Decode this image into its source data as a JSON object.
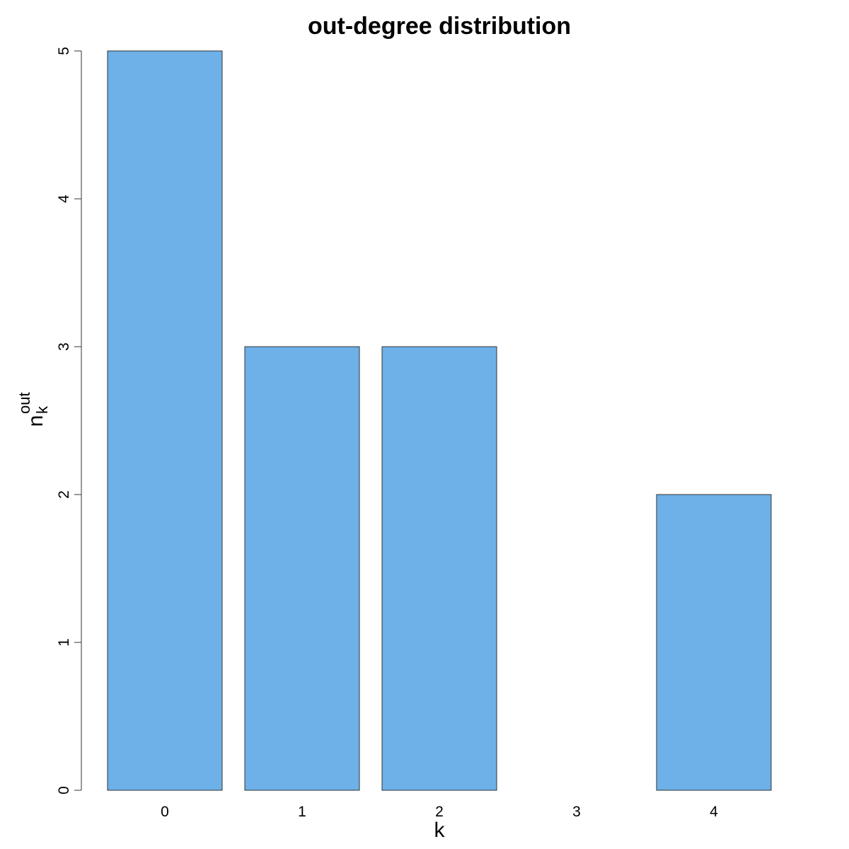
{
  "chart_data": {
    "type": "bar",
    "title": "out-degree distribution",
    "xlabel": "k",
    "ylabel": {
      "base": "n",
      "subscript": "k",
      "superscript": "out"
    },
    "categories": [
      "0",
      "1",
      "2",
      "3",
      "4"
    ],
    "values": [
      5,
      3,
      3,
      0,
      2
    ],
    "ylim": [
      0,
      5
    ],
    "yticks": [
      0,
      1,
      2,
      3,
      4,
      5
    ],
    "bar_color": "#6DB1E8",
    "bar_edge_color": "#333333",
    "grid": false,
    "legend": null
  }
}
